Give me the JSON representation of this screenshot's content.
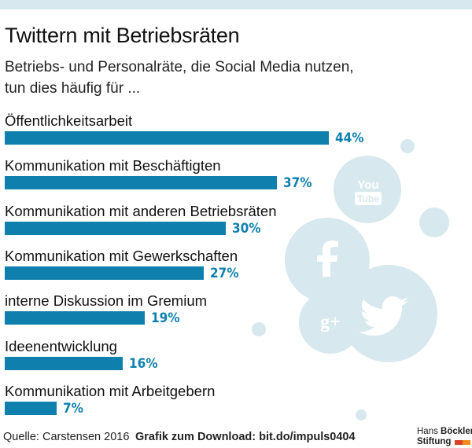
{
  "title": "Twittern mit Betriebsräten",
  "subtitle": "Betriebs- und Personalräte, die Social Media nutzen, tun dies häufig für ...",
  "chart_data": {
    "type": "bar",
    "orientation": "horizontal",
    "title": "Twittern mit Betriebsräten",
    "subtitle": "Betriebs- und Personalräte, die Social Media nutzen, tun dies häufig für ...",
    "categories": [
      "Öffentlichkeitsarbeit",
      "Kommunikation mit Beschäftigten",
      "Kommunikation mit anderen Betriebsräten",
      "Kommunikation mit Gewerkschaften",
      "interne Diskussion im Gremium",
      "Ideenentwicklung",
      "Kommunikation mit Arbeitgebern"
    ],
    "values": [
      44,
      37,
      30,
      27,
      19,
      16,
      7
    ],
    "value_labels": [
      "44%",
      "37%",
      "30%",
      "27%",
      "19%",
      "16%",
      "7%"
    ],
    "unit": "%",
    "xlim": [
      0,
      100
    ],
    "grid": false,
    "legend": "none",
    "colors": {
      "bar": "#0f80ad",
      "value_label": "#0f80ad",
      "background_icons": "#d7e8ef"
    }
  },
  "background_icons": [
    "youtube-icon",
    "facebook-icon",
    "twitter-icon",
    "google-plus-icon"
  ],
  "icon_text": {
    "youtube_top": "You",
    "youtube_bottom": "Tube",
    "google_plus": "g+"
  },
  "footer": {
    "source": "Quelle: Carstensen 2016",
    "download": "Grafik zum Download: bit.do/impuls0404"
  },
  "logo": {
    "line1_prefix": "Hans ",
    "line1_bold": "Böckler",
    "line2": "Stiftung"
  }
}
